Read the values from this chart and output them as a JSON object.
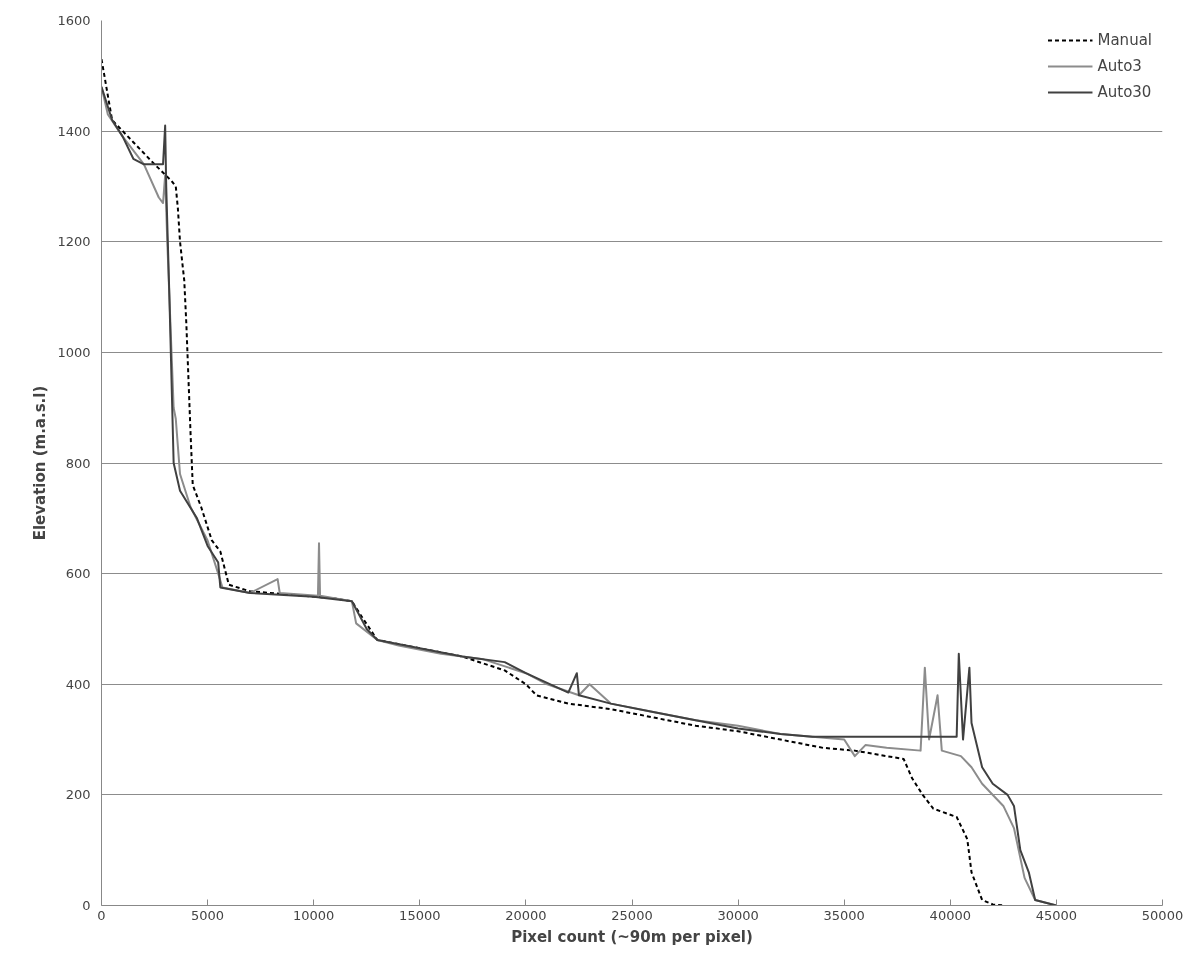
{
  "chart_data": {
    "type": "line",
    "xlabel": "Pixel count (~90m per pixel)",
    "ylabel": "Elevation (m.a.s.l)",
    "xlim": [
      0,
      50000
    ],
    "xticks": [
      0,
      5000,
      10000,
      15000,
      20000,
      25000,
      30000,
      35000,
      40000,
      45000,
      50000
    ],
    "ylim": [
      0,
      1600
    ],
    "yticks": [
      0,
      200,
      400,
      600,
      800,
      1000,
      1200,
      1400,
      1600
    ],
    "grid": "y",
    "legend": "top right",
    "series": [
      {
        "name": "Manual",
        "color": "#000000",
        "line_style": "dashed",
        "x": [
          0,
          500,
          1500,
          2500,
          3300,
          3500,
          3600,
          3700,
          3900,
          4000,
          4100,
          4200,
          4300,
          4700,
          5200,
          5600,
          6000,
          7000,
          9000,
          11000,
          11800,
          12300,
          13000,
          15000,
          17000,
          19000,
          20000,
          20500,
          22000,
          24000,
          26000,
          28000,
          30000,
          32000,
          34000,
          35500,
          37000,
          37800,
          38200,
          38700,
          39200,
          40300,
          40800,
          41000,
          41500,
          42000,
          42500
        ],
        "values": [
          1530,
          1420,
          1380,
          1340,
          1310,
          1300,
          1260,
          1200,
          1130,
          1050,
          950,
          850,
          760,
          720,
          660,
          640,
          580,
          568,
          562,
          555,
          550,
          520,
          480,
          465,
          450,
          425,
          400,
          380,
          365,
          355,
          340,
          325,
          315,
          300,
          285,
          280,
          270,
          265,
          230,
          200,
          175,
          160,
          120,
          60,
          10,
          2,
          0
        ]
      },
      {
        "name": "Auto3",
        "color": "#8c8c8c",
        "line_style": "solid",
        "x": [
          0,
          300,
          1000,
          2000,
          2700,
          2900,
          3000,
          3100,
          3300,
          3400,
          3500,
          3700,
          4200,
          5000,
          5500,
          5700,
          7000,
          8300,
          8400,
          10200,
          10250,
          10300,
          11800,
          12000,
          13000,
          14000,
          16000,
          18000,
          20000,
          21000,
          22500,
          23000,
          24000,
          26000,
          28000,
          30000,
          32000,
          35000,
          35500,
          36000,
          37000,
          38600,
          38800,
          39000,
          39400,
          39600,
          40500,
          41000,
          41500,
          42500,
          43000,
          43500,
          44000,
          45000
        ],
        "values": [
          1480,
          1430,
          1390,
          1340,
          1280,
          1270,
          1320,
          1200,
          1000,
          900,
          880,
          780,
          720,
          660,
          600,
          575,
          565,
          590,
          565,
          560,
          655,
          560,
          550,
          510,
          480,
          470,
          455,
          445,
          420,
          400,
          380,
          400,
          365,
          350,
          335,
          325,
          310,
          300,
          270,
          290,
          285,
          280,
          430,
          300,
          380,
          280,
          270,
          250,
          220,
          180,
          140,
          50,
          10,
          0
        ]
      },
      {
        "name": "Auto30",
        "color": "#404040",
        "line_style": "solid",
        "x": [
          0,
          500,
          1000,
          1500,
          2000,
          2900,
          3000,
          3050,
          3200,
          3400,
          3700,
          4500,
          5000,
          5500,
          5600,
          7000,
          10000,
          11800,
          12500,
          13000,
          15000,
          17000,
          19000,
          20000,
          22000,
          22400,
          22500,
          24000,
          26000,
          28000,
          30000,
          32000,
          33500,
          40300,
          40400,
          40600,
          40900,
          41000,
          41500,
          42000,
          42700,
          43000,
          43300,
          43700,
          44000,
          44500,
          45000
        ],
        "values": [
          1480,
          1420,
          1390,
          1350,
          1340,
          1340,
          1410,
          1300,
          1100,
          800,
          750,
          700,
          650,
          620,
          575,
          565,
          558,
          550,
          500,
          480,
          465,
          450,
          440,
          420,
          385,
          420,
          380,
          365,
          350,
          335,
          320,
          310,
          305,
          305,
          455,
          300,
          430,
          330,
          250,
          220,
          200,
          180,
          100,
          60,
          10,
          5,
          0
        ]
      }
    ]
  }
}
